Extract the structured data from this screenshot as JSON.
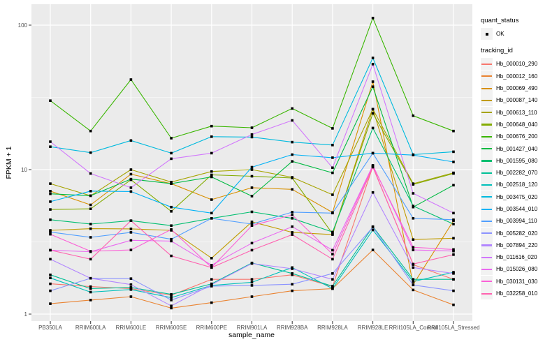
{
  "figure": {
    "background": "#FFFFFF",
    "panel_background": "#EBEBEB",
    "gridline_color": "#FFFFFF",
    "tick_color": "#333333",
    "tick_label_color": "#4D4D4D",
    "point_color": "#000000"
  },
  "chart_data": {
    "type": "line",
    "title": "",
    "xlabel": "sample_name",
    "ylabel": "FPKM + 1",
    "y_scale": "log10",
    "y_ticks": [
      1,
      10,
      100
    ],
    "y_minor_ticks": [
      3.162,
      31.623
    ],
    "ylim": [
      0.87,
      140
    ],
    "grid": true,
    "legend_position": "right",
    "point_shape": "filled-square",
    "categories": [
      "PB350LA",
      "RRIM600LA",
      "RRIM600LE",
      "RRIM600SE",
      "RRIM600PE",
      "RRIM901LA",
      "RRIM928BA",
      "RRIM928LA",
      "RRIM928LE",
      "RRII105LA_Control",
      "RRII105LA_Stressed"
    ],
    "legend": {
      "quant_status": {
        "title": "quant_status",
        "items": [
          {
            "label": "OK",
            "marker": "black-square"
          }
        ]
      },
      "tracking_id_title": "tracking_id"
    },
    "series": [
      {
        "name": "Hb_000010_290",
        "color": "#F8766D",
        "values": [
          1.62,
          1.55,
          1.5,
          1.35,
          1.74,
          1.74,
          1.87,
          1.55,
          10.5,
          2.2,
          1.74
        ]
      },
      {
        "name": "Hb_000012_160",
        "color": "#EA8331",
        "values": [
          1.18,
          1.25,
          1.32,
          1.1,
          1.2,
          1.32,
          1.45,
          1.5,
          2.78,
          1.47,
          1.16
        ]
      },
      {
        "name": "Hb_000069_490",
        "color": "#D89000",
        "values": [
          7.1,
          5.7,
          9.3,
          8.0,
          6.2,
          7.5,
          7.3,
          5.05,
          40.6,
          1.6,
          4.43
        ]
      },
      {
        "name": "Hb_000087_140",
        "color": "#C19C00",
        "values": [
          3.8,
          3.9,
          3.89,
          3.8,
          2.44,
          4.35,
          3.68,
          3.55,
          26.2,
          3.28,
          3.35
        ]
      },
      {
        "name": "Hb_000613_110",
        "color": "#A6A400",
        "values": [
          8.0,
          6.6,
          10.0,
          8.2,
          9.7,
          10.0,
          8.85,
          6.7,
          26.2,
          8.0,
          9.5
        ]
      },
      {
        "name": "Hb_000648_040",
        "color": "#83AC00",
        "values": [
          5.3,
          5.35,
          8.5,
          5.14,
          9.2,
          9.0,
          8.75,
          3.6,
          24.5,
          7.9,
          9.4
        ]
      },
      {
        "name": "Hb_000676_200",
        "color": "#39B600",
        "values": [
          30.0,
          18.5,
          42.0,
          16.5,
          20.0,
          19.5,
          26.5,
          19.3,
          112,
          23.6,
          18.5
        ]
      },
      {
        "name": "Hb_001427_040",
        "color": "#00BA42",
        "values": [
          6.8,
          6.6,
          8.6,
          8.0,
          8.9,
          6.55,
          11.4,
          9.5,
          37.5,
          5.5,
          7.8
        ]
      },
      {
        "name": "Hb_001595_080",
        "color": "#00BE70",
        "values": [
          4.5,
          4.2,
          4.43,
          4.1,
          4.6,
          5.1,
          4.6,
          3.7,
          19.4,
          5.6,
          4.2
        ]
      },
      {
        "name": "Hb_002282_070",
        "color": "#00C096",
        "values": [
          1.87,
          1.5,
          1.53,
          1.37,
          1.62,
          2.26,
          1.91,
          1.56,
          4.03,
          1.74,
          1.74
        ]
      },
      {
        "name": "Hb_002518_120",
        "color": "#00C0BA",
        "values": [
          1.78,
          1.42,
          1.48,
          1.3,
          1.58,
          1.66,
          2.1,
          1.5,
          3.82,
          1.68,
          1.95
        ]
      },
      {
        "name": "Hb_003475_020",
        "color": "#00BADE",
        "values": [
          14.4,
          13.1,
          15.9,
          13.0,
          16.9,
          16.8,
          15.5,
          14.8,
          59.3,
          12.7,
          13.3
        ]
      },
      {
        "name": "Hb_003544_010",
        "color": "#00B2F6",
        "values": [
          6.0,
          7.1,
          7.05,
          5.5,
          5.0,
          10.4,
          12.7,
          12.1,
          13.0,
          12.6,
          11.3
        ]
      },
      {
        "name": "Hb_003994_110",
        "color": "#519FFF",
        "values": [
          3.7,
          3.4,
          3.68,
          3.3,
          4.6,
          4.2,
          5.08,
          5.0,
          13.0,
          4.6,
          4.5
        ]
      },
      {
        "name": "Hb_005282_020",
        "color": "#8B93FF",
        "values": [
          1.45,
          1.77,
          1.76,
          1.25,
          1.56,
          1.58,
          1.61,
          1.91,
          4.0,
          1.59,
          1.45
        ]
      },
      {
        "name": "Hb_007894_220",
        "color": "#B286FF",
        "values": [
          2.4,
          1.77,
          1.6,
          1.14,
          1.6,
          2.24,
          2.06,
          1.74,
          6.95,
          2.1,
          1.91
        ]
      },
      {
        "name": "Hb_011616_020",
        "color": "#D278FC",
        "values": [
          15.6,
          9.4,
          7.5,
          11.9,
          13.0,
          17.5,
          21.9,
          10.3,
          53.7,
          6.85,
          5.0
        ]
      },
      {
        "name": "Hb_015026_080",
        "color": "#EA6AF0",
        "values": [
          2.77,
          2.7,
          3.24,
          3.2,
          2.18,
          3.1,
          4.03,
          2.77,
          10.7,
          2.78,
          2.73
        ]
      },
      {
        "name": "Hb_030131_030",
        "color": "#FB61D7",
        "values": [
          3.57,
          2.72,
          2.78,
          3.85,
          2.1,
          4.1,
          4.86,
          2.6,
          10.6,
          2.9,
          2.8
        ]
      },
      {
        "name": "Hb_032258_010",
        "color": "#FF62B0",
        "values": [
          2.77,
          2.4,
          4.43,
          2.53,
          2.1,
          2.77,
          3.55,
          2.4,
          10.4,
          2.22,
          2.58
        ]
      }
    ]
  }
}
